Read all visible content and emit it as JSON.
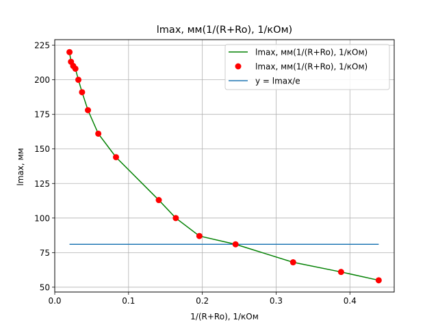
{
  "chart_data": {
    "type": "line",
    "title": "lmax, мм(1/(R+Ro), 1/кОм)",
    "xlabel": "1/(R+Ro), 1/кОм",
    "ylabel": "lmax, мм",
    "xlim": [
      0.0,
      0.46
    ],
    "ylim": [
      46.5,
      229
    ],
    "x_ticks": [
      0.0,
      0.1,
      0.2,
      0.3,
      0.4
    ],
    "x_tick_labels": [
      "0.0",
      "0.1",
      "0.2",
      "0.3",
      "0.4"
    ],
    "y_ticks": [
      50,
      75,
      100,
      125,
      150,
      175,
      200,
      225
    ],
    "y_tick_labels": [
      "50",
      "75",
      "100",
      "125",
      "150",
      "175",
      "200",
      "225"
    ],
    "grid": true,
    "legend_position": "top-right",
    "x": [
      0.02,
      0.022,
      0.025,
      0.028,
      0.032,
      0.037,
      0.045,
      0.059,
      0.083,
      0.141,
      0.164,
      0.196,
      0.245,
      0.323,
      0.388,
      0.439
    ],
    "series": [
      {
        "name": "lmax, мм(1/(R+Ro), 1/кОм)",
        "kind": "line",
        "color": "#008000",
        "values": [
          220,
          213,
          210,
          208,
          200,
          191,
          178,
          161,
          144,
          113,
          100,
          87,
          81,
          68,
          61,
          55
        ]
      },
      {
        "name": "lmax, мм(1/(R+Ro), 1/кОм)",
        "kind": "scatter",
        "color": "#ff0000",
        "values": [
          220,
          213,
          210,
          208,
          200,
          191,
          178,
          161,
          144,
          113,
          100,
          87,
          81,
          68,
          61,
          55
        ]
      },
      {
        "name": "y = lmax/e",
        "kind": "hline",
        "color": "#1f77b4",
        "x": [
          0.02,
          0.439
        ],
        "values": [
          81,
          81
        ]
      }
    ]
  }
}
